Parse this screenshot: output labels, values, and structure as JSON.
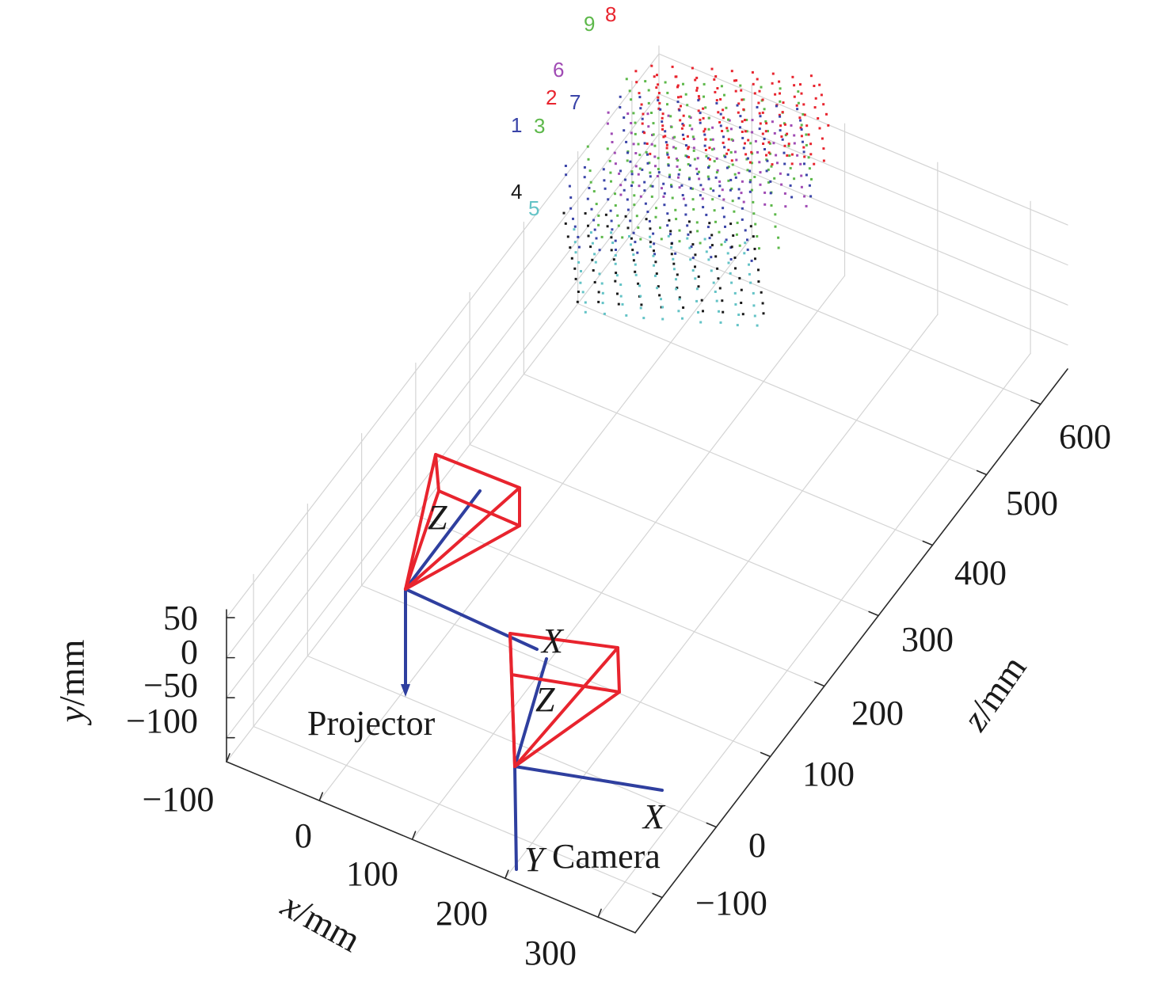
{
  "chart_data": {
    "type": "scatter",
    "title": "",
    "x_axis": {
      "symbol": "x",
      "unit": "/mm",
      "ticks": [
        "−100",
        "0",
        "100",
        "200",
        "300"
      ],
      "range": [
        -100,
        340
      ]
    },
    "y_axis": {
      "symbol": "y",
      "unit": "/mm",
      "ticks": [
        "50",
        "0",
        "−50",
        "−100"
      ],
      "range": [
        -130,
        60
      ]
    },
    "z_axis": {
      "symbol": "z",
      "unit": "/mm",
      "ticks": [
        "−100",
        "0",
        "100",
        "200",
        "300",
        "400",
        "500",
        "600"
      ],
      "range": [
        -150,
        650
      ]
    },
    "grid": true,
    "devices": [
      {
        "name": "Projector",
        "axes": [
          "X",
          "Z"
        ]
      },
      {
        "name": "Camera",
        "axes": [
          "X",
          "Y",
          "Z"
        ]
      }
    ],
    "colors": {
      "frustum": "#e8242e",
      "axes": "#2f3f9f",
      "grid": "#d4d4d4"
    },
    "series": [
      {
        "name": "1",
        "color": "#3a44a8"
      },
      {
        "name": "2",
        "color": "#e8242e"
      },
      {
        "name": "3",
        "color": "#5db84a"
      },
      {
        "name": "4",
        "color": "#1a1a1a"
      },
      {
        "name": "5",
        "color": "#63c3c6"
      },
      {
        "name": "6",
        "color": "#a04bb4"
      },
      {
        "name": "7",
        "color": "#3a44a8"
      },
      {
        "name": "8",
        "color": "#e8242e"
      },
      {
        "name": "9",
        "color": "#5db84a"
      }
    ]
  }
}
